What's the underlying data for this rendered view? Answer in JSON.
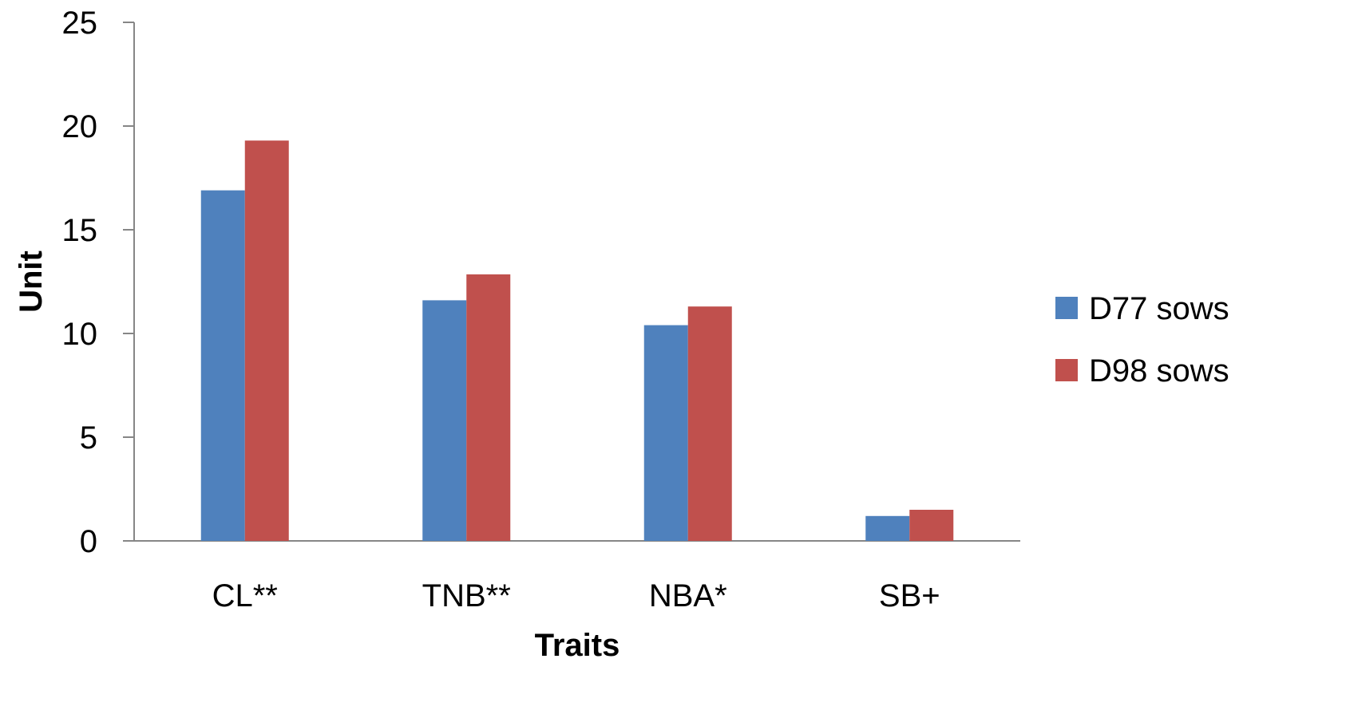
{
  "chart_data": {
    "type": "bar",
    "title": "",
    "xlabel": "Traits",
    "ylabel": "Unit",
    "categories": [
      "CL**",
      "TNB**",
      "NBA*",
      "SB+"
    ],
    "series": [
      {
        "name": "D77 sows",
        "color": "#4F81BD",
        "values": [
          16.9,
          11.6,
          10.4,
          1.2
        ]
      },
      {
        "name": "D98 sows",
        "color": "#C0504D",
        "values": [
          19.3,
          12.85,
          11.3,
          1.5
        ]
      }
    ],
    "ylim": [
      0,
      25
    ],
    "yticks": [
      "0",
      "5",
      "10",
      "15",
      "20",
      "25"
    ],
    "grid": false,
    "legend_position": "right"
  }
}
